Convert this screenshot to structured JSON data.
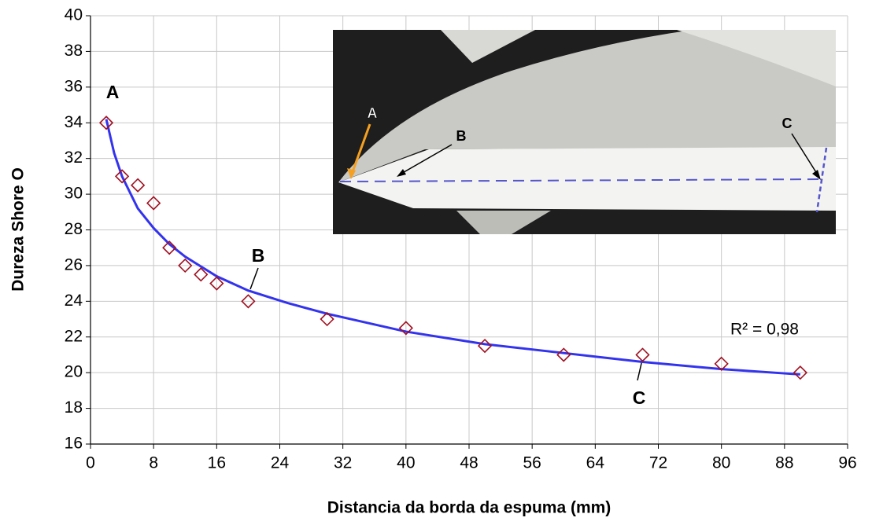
{
  "chart_data": {
    "type": "scatter",
    "x_label": "Distancia da borda da espuma (mm)",
    "y_label": "Dureza Shore O",
    "x": [
      2,
      4,
      6,
      8,
      10,
      12,
      14,
      16,
      20,
      30,
      40,
      50,
      60,
      70,
      80,
      90
    ],
    "series": [
      {
        "color": "#a01020",
        "values": [
          34,
          31,
          30.5,
          29.5,
          27,
          26,
          25.5,
          25,
          24,
          23,
          22.5,
          21.5,
          21,
          21,
          20.5,
          20
        ]
      }
    ],
    "trend": {
      "color": "#3333ee",
      "x": [
        2,
        3,
        4,
        6,
        8,
        10,
        12,
        16,
        20,
        25,
        30,
        40,
        50,
        60,
        70,
        80,
        90
      ],
      "values": [
        34.2,
        32.3,
        31.0,
        29.2,
        28.1,
        27.2,
        26.5,
        25.4,
        24.6,
        23.9,
        23.3,
        22.3,
        21.6,
        21.1,
        20.6,
        20.2,
        19.9
      ]
    },
    "annotations": [
      "A",
      "B",
      "C",
      "R² = 0,98"
    ],
    "xlim": [
      0,
      96
    ],
    "xticks": [
      0,
      8,
      16,
      24,
      32,
      40,
      48,
      56,
      64,
      72,
      80,
      88,
      96
    ],
    "ylim": [
      16,
      40
    ],
    "yticks": [
      16,
      18,
      20,
      22,
      24,
      26,
      28,
      30,
      32,
      34,
      36,
      38,
      40
    ],
    "grid": true
  },
  "inset": {
    "labels": [
      "A",
      "B",
      "C"
    ]
  }
}
